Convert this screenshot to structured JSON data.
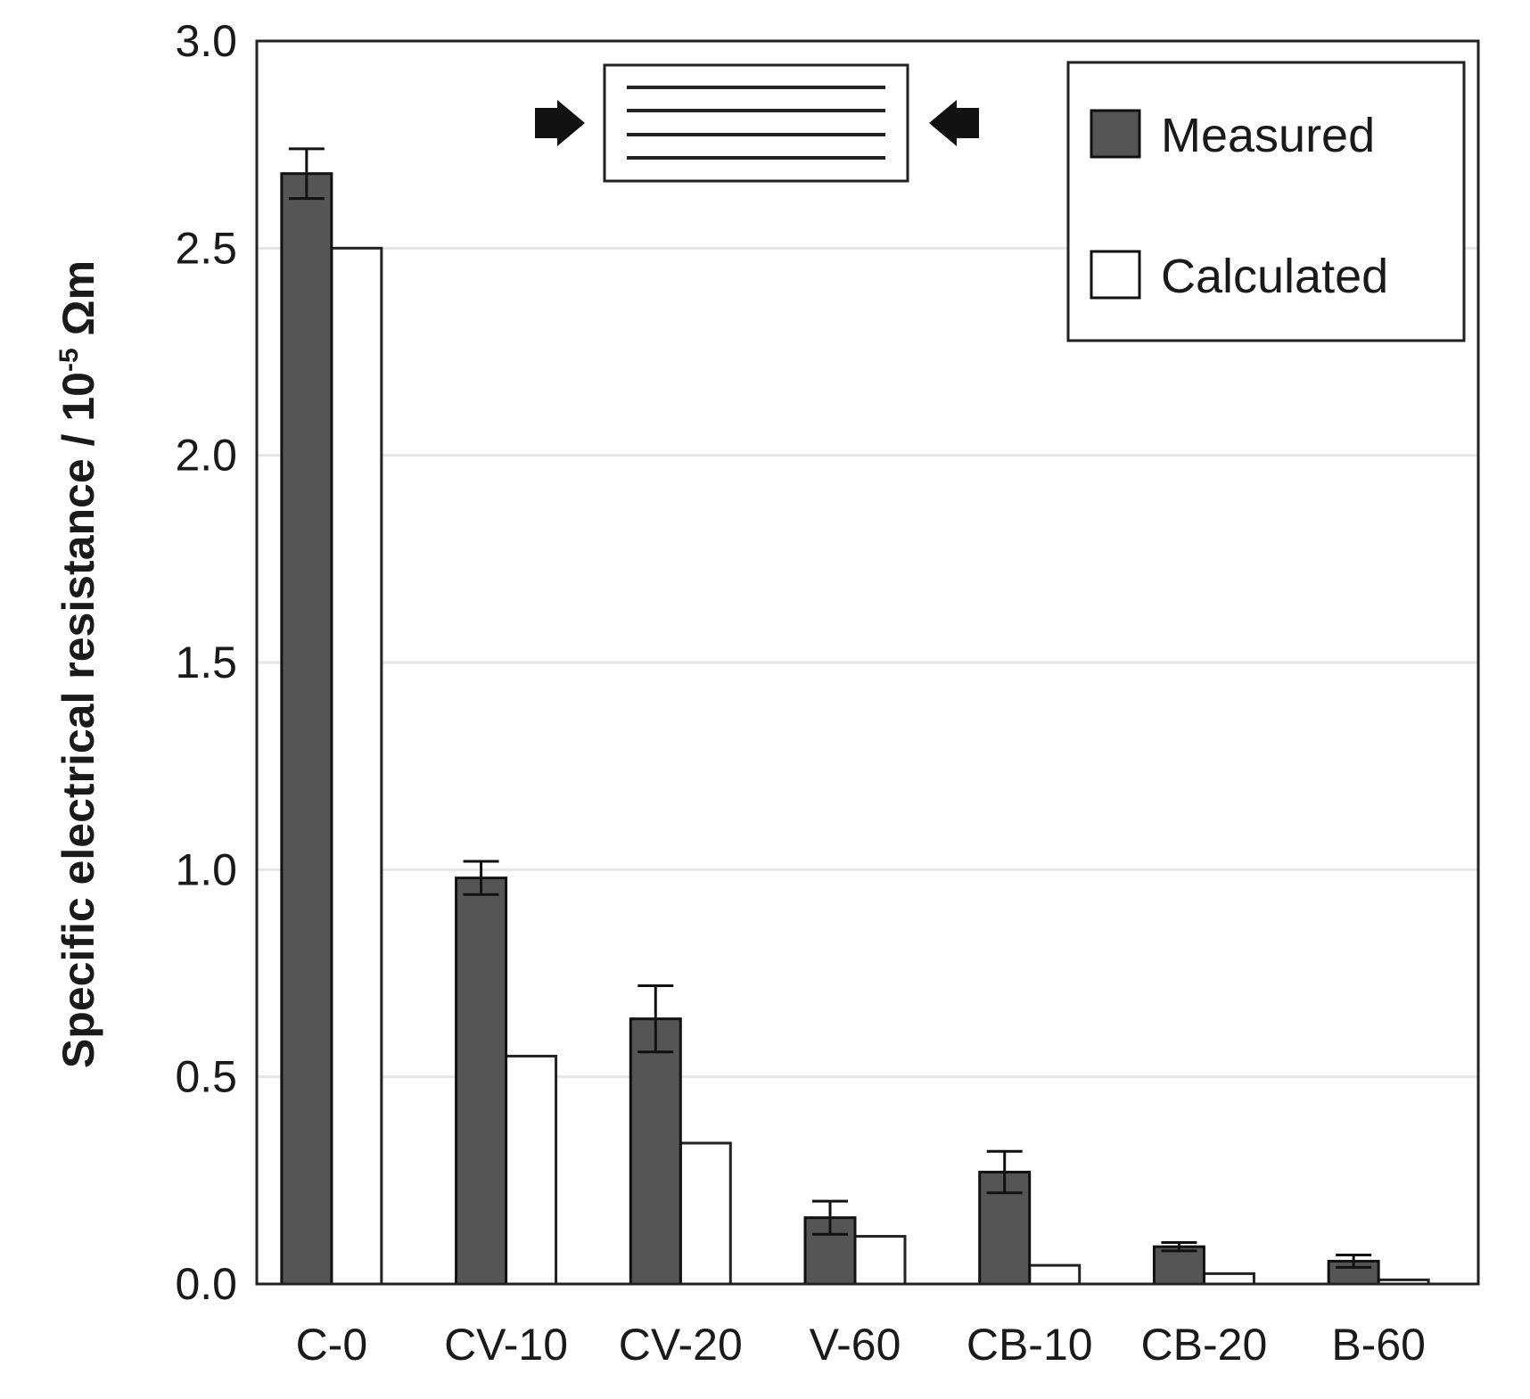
{
  "chart_data": {
    "type": "bar",
    "title": "",
    "xlabel": "",
    "ylabel": {
      "main": "Specific electrical resistance / 10",
      "superscript": "-5",
      "unit": " Ωm"
    },
    "ylim": [
      0,
      3.0
    ],
    "yticks": [
      "0.0",
      "0.5",
      "1.0",
      "1.5",
      "2.0",
      "2.5",
      "3.0"
    ],
    "ytick_values": [
      0,
      0.5,
      1.0,
      1.5,
      2.0,
      2.5,
      3.0
    ],
    "grid": true,
    "legend_position": "top-right",
    "categories": [
      "C-0",
      "CV-10",
      "CV-20",
      "V-60",
      "CB-10",
      "CB-20",
      "B-60"
    ],
    "series": [
      {
        "name": "Measured",
        "values": [
          2.68,
          0.98,
          0.64,
          0.16,
          0.27,
          0.09,
          0.055
        ],
        "errors": [
          0.06,
          0.04,
          0.08,
          0.04,
          0.05,
          0.01,
          0.015
        ]
      },
      {
        "name": "Calculated",
        "values": [
          2.5,
          0.55,
          0.34,
          0.115,
          0.045,
          0.025,
          0.01
        ]
      }
    ],
    "annotation": "layered sample schematic compressed by two arrows"
  },
  "colors": {
    "measured": "#555555",
    "calculated": "#ffffff",
    "axis": "#222222",
    "grid": "#e6e6e6"
  }
}
